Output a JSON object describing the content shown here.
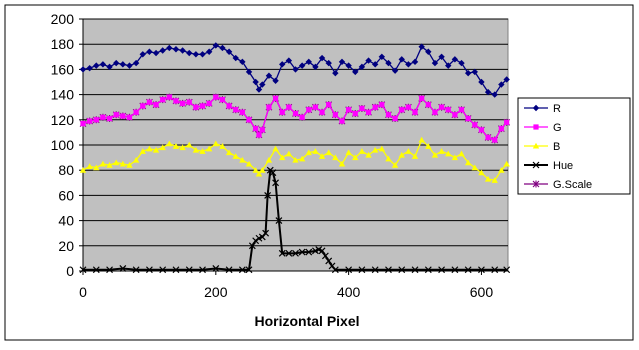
{
  "chart_data": {
    "type": "line",
    "title": "",
    "xlabel": "Horizontal Pixel",
    "ylabel": "",
    "xlim": [
      0,
      640
    ],
    "ylim": [
      0,
      200
    ],
    "x_ticks": [
      0,
      200,
      400,
      600
    ],
    "y_ticks": [
      0,
      20,
      40,
      60,
      80,
      100,
      120,
      140,
      160,
      180,
      200
    ],
    "grid": "horizontal",
    "legend": "right",
    "plot_background": "#c0c0c0",
    "series": [
      {
        "name": "R",
        "color": "#000080",
        "marker": "diamond",
        "points": [
          [
            0,
            160
          ],
          [
            10,
            161
          ],
          [
            20,
            163
          ],
          [
            30,
            164
          ],
          [
            40,
            162
          ],
          [
            50,
            165
          ],
          [
            60,
            164
          ],
          [
            70,
            163
          ],
          [
            80,
            165
          ],
          [
            90,
            172
          ],
          [
            100,
            174
          ],
          [
            110,
            173
          ],
          [
            120,
            175
          ],
          [
            130,
            177
          ],
          [
            140,
            176
          ],
          [
            150,
            175
          ],
          [
            160,
            173
          ],
          [
            170,
            172
          ],
          [
            180,
            172
          ],
          [
            190,
            174
          ],
          [
            200,
            179
          ],
          [
            210,
            177
          ],
          [
            220,
            174
          ],
          [
            230,
            169
          ],
          [
            240,
            166
          ],
          [
            250,
            158
          ],
          [
            260,
            150
          ],
          [
            265,
            144
          ],
          [
            270,
            148
          ],
          [
            280,
            155
          ],
          [
            290,
            151
          ],
          [
            300,
            164
          ],
          [
            310,
            167
          ],
          [
            320,
            160
          ],
          [
            330,
            163
          ],
          [
            340,
            166
          ],
          [
            350,
            162
          ],
          [
            360,
            169
          ],
          [
            370,
            165
          ],
          [
            380,
            157
          ],
          [
            390,
            166
          ],
          [
            400,
            163
          ],
          [
            410,
            158
          ],
          [
            420,
            162
          ],
          [
            430,
            167
          ],
          [
            440,
            164
          ],
          [
            450,
            170
          ],
          [
            460,
            165
          ],
          [
            470,
            159
          ],
          [
            480,
            168
          ],
          [
            490,
            164
          ],
          [
            500,
            166
          ],
          [
            510,
            178
          ],
          [
            520,
            174
          ],
          [
            530,
            165
          ],
          [
            540,
            170
          ],
          [
            550,
            163
          ],
          [
            560,
            168
          ],
          [
            570,
            165
          ],
          [
            580,
            157
          ],
          [
            590,
            158
          ],
          [
            600,
            150
          ],
          [
            610,
            142
          ],
          [
            620,
            140
          ],
          [
            630,
            148
          ],
          [
            638,
            152
          ]
        ]
      },
      {
        "name": "G",
        "color": "#ff00ff",
        "marker": "square",
        "points": [
          [
            0,
            117
          ],
          [
            10,
            119
          ],
          [
            20,
            120
          ],
          [
            30,
            122
          ],
          [
            40,
            121
          ],
          [
            50,
            124
          ],
          [
            60,
            123
          ],
          [
            70,
            122
          ],
          [
            80,
            126
          ],
          [
            90,
            131
          ],
          [
            100,
            134
          ],
          [
            110,
            132
          ],
          [
            120,
            136
          ],
          [
            130,
            138
          ],
          [
            140,
            135
          ],
          [
            150,
            133
          ],
          [
            160,
            134
          ],
          [
            170,
            130
          ],
          [
            180,
            131
          ],
          [
            190,
            133
          ],
          [
            200,
            138
          ],
          [
            210,
            136
          ],
          [
            220,
            131
          ],
          [
            230,
            128
          ],
          [
            240,
            126
          ],
          [
            250,
            120
          ],
          [
            260,
            113
          ],
          [
            265,
            108
          ],
          [
            270,
            112
          ],
          [
            280,
            130
          ],
          [
            290,
            137
          ],
          [
            300,
            126
          ],
          [
            310,
            130
          ],
          [
            320,
            125
          ],
          [
            330,
            122
          ],
          [
            340,
            128
          ],
          [
            350,
            130
          ],
          [
            360,
            126
          ],
          [
            370,
            132
          ],
          [
            380,
            124
          ],
          [
            390,
            119
          ],
          [
            400,
            128
          ],
          [
            410,
            125
          ],
          [
            420,
            129
          ],
          [
            430,
            126
          ],
          [
            440,
            130
          ],
          [
            450,
            132
          ],
          [
            460,
            124
          ],
          [
            470,
            121
          ],
          [
            480,
            128
          ],
          [
            490,
            130
          ],
          [
            500,
            126
          ],
          [
            510,
            137
          ],
          [
            520,
            132
          ],
          [
            530,
            126
          ],
          [
            540,
            130
          ],
          [
            550,
            128
          ],
          [
            560,
            124
          ],
          [
            570,
            128
          ],
          [
            580,
            121
          ],
          [
            590,
            116
          ],
          [
            600,
            112
          ],
          [
            610,
            106
          ],
          [
            620,
            104
          ],
          [
            630,
            113
          ],
          [
            638,
            118
          ]
        ]
      },
      {
        "name": "B",
        "color": "#ffff00",
        "marker": "triangle",
        "points": [
          [
            0,
            80
          ],
          [
            10,
            83
          ],
          [
            20,
            82
          ],
          [
            30,
            85
          ],
          [
            40,
            84
          ],
          [
            50,
            86
          ],
          [
            60,
            85
          ],
          [
            70,
            84
          ],
          [
            80,
            88
          ],
          [
            90,
            95
          ],
          [
            100,
            97
          ],
          [
            110,
            96
          ],
          [
            120,
            98
          ],
          [
            130,
            101
          ],
          [
            140,
            99
          ],
          [
            150,
            98
          ],
          [
            160,
            100
          ],
          [
            170,
            96
          ],
          [
            180,
            95
          ],
          [
            190,
            97
          ],
          [
            200,
            101
          ],
          [
            210,
            99
          ],
          [
            220,
            94
          ],
          [
            230,
            91
          ],
          [
            240,
            88
          ],
          [
            250,
            85
          ],
          [
            260,
            80
          ],
          [
            265,
            77
          ],
          [
            270,
            80
          ],
          [
            280,
            88
          ],
          [
            290,
            97
          ],
          [
            300,
            90
          ],
          [
            310,
            93
          ],
          [
            320,
            88
          ],
          [
            330,
            89
          ],
          [
            340,
            94
          ],
          [
            350,
            95
          ],
          [
            360,
            91
          ],
          [
            370,
            94
          ],
          [
            380,
            90
          ],
          [
            390,
            85
          ],
          [
            400,
            94
          ],
          [
            410,
            90
          ],
          [
            420,
            95
          ],
          [
            430,
            92
          ],
          [
            440,
            96
          ],
          [
            450,
            97
          ],
          [
            460,
            89
          ],
          [
            470,
            84
          ],
          [
            480,
            92
          ],
          [
            490,
            95
          ],
          [
            500,
            91
          ],
          [
            510,
            104
          ],
          [
            520,
            99
          ],
          [
            530,
            92
          ],
          [
            540,
            95
          ],
          [
            550,
            93
          ],
          [
            560,
            90
          ],
          [
            570,
            93
          ],
          [
            580,
            86
          ],
          [
            590,
            82
          ],
          [
            600,
            78
          ],
          [
            610,
            73
          ],
          [
            620,
            72
          ],
          [
            630,
            80
          ],
          [
            638,
            85
          ]
        ]
      },
      {
        "name": "Hue",
        "color": "#000000",
        "marker": "x",
        "points": [
          [
            0,
            1
          ],
          [
            20,
            1
          ],
          [
            40,
            1
          ],
          [
            60,
            2
          ],
          [
            80,
            1
          ],
          [
            100,
            1
          ],
          [
            120,
            1
          ],
          [
            140,
            1
          ],
          [
            160,
            1
          ],
          [
            180,
            1
          ],
          [
            200,
            2
          ],
          [
            220,
            1
          ],
          [
            240,
            1
          ],
          [
            250,
            1
          ],
          [
            255,
            20
          ],
          [
            260,
            24
          ],
          [
            265,
            26
          ],
          [
            270,
            27
          ],
          [
            275,
            30
          ],
          [
            278,
            60
          ],
          [
            282,
            80
          ],
          [
            286,
            78
          ],
          [
            290,
            70
          ],
          [
            295,
            40
          ],
          [
            300,
            14
          ],
          [
            310,
            14
          ],
          [
            320,
            14
          ],
          [
            330,
            15
          ],
          [
            340,
            15
          ],
          [
            350,
            16
          ],
          [
            355,
            17
          ],
          [
            360,
            16
          ],
          [
            365,
            12
          ],
          [
            370,
            8
          ],
          [
            375,
            4
          ],
          [
            380,
            1
          ],
          [
            400,
            1
          ],
          [
            420,
            1
          ],
          [
            440,
            1
          ],
          [
            460,
            1
          ],
          [
            480,
            1
          ],
          [
            500,
            1
          ],
          [
            520,
            1
          ],
          [
            540,
            1
          ],
          [
            560,
            1
          ],
          [
            580,
            1
          ],
          [
            600,
            1
          ],
          [
            620,
            1
          ],
          [
            638,
            1
          ]
        ]
      },
      {
        "name": "G.Scale",
        "color": "#800080",
        "marker": "star",
        "points": [
          [
            0,
            117
          ],
          [
            10,
            119
          ],
          [
            20,
            120
          ],
          [
            30,
            122
          ],
          [
            40,
            121
          ],
          [
            50,
            124
          ],
          [
            60,
            123
          ],
          [
            70,
            122
          ],
          [
            80,
            126
          ],
          [
            90,
            131
          ],
          [
            100,
            134
          ],
          [
            110,
            132
          ],
          [
            120,
            136
          ],
          [
            130,
            138
          ],
          [
            140,
            135
          ],
          [
            150,
            133
          ],
          [
            160,
            134
          ],
          [
            170,
            130
          ],
          [
            180,
            131
          ],
          [
            190,
            133
          ],
          [
            200,
            138
          ],
          [
            210,
            136
          ],
          [
            220,
            131
          ],
          [
            230,
            128
          ],
          [
            240,
            126
          ],
          [
            250,
            120
          ],
          [
            260,
            113
          ],
          [
            265,
            108
          ],
          [
            270,
            112
          ],
          [
            280,
            130
          ],
          [
            290,
            137
          ],
          [
            300,
            126
          ],
          [
            310,
            130
          ],
          [
            320,
            125
          ],
          [
            330,
            122
          ],
          [
            340,
            128
          ],
          [
            350,
            130
          ],
          [
            360,
            126
          ],
          [
            370,
            132
          ],
          [
            380,
            124
          ],
          [
            390,
            119
          ],
          [
            400,
            128
          ],
          [
            410,
            125
          ],
          [
            420,
            129
          ],
          [
            430,
            126
          ],
          [
            440,
            130
          ],
          [
            450,
            132
          ],
          [
            460,
            124
          ],
          [
            470,
            121
          ],
          [
            480,
            128
          ],
          [
            490,
            130
          ],
          [
            500,
            126
          ],
          [
            510,
            137
          ],
          [
            520,
            132
          ],
          [
            530,
            126
          ],
          [
            540,
            130
          ],
          [
            550,
            128
          ],
          [
            560,
            124
          ],
          [
            570,
            128
          ],
          [
            580,
            121
          ],
          [
            590,
            116
          ],
          [
            600,
            112
          ],
          [
            610,
            106
          ],
          [
            620,
            104
          ],
          [
            630,
            113
          ],
          [
            638,
            118
          ]
        ]
      }
    ]
  }
}
